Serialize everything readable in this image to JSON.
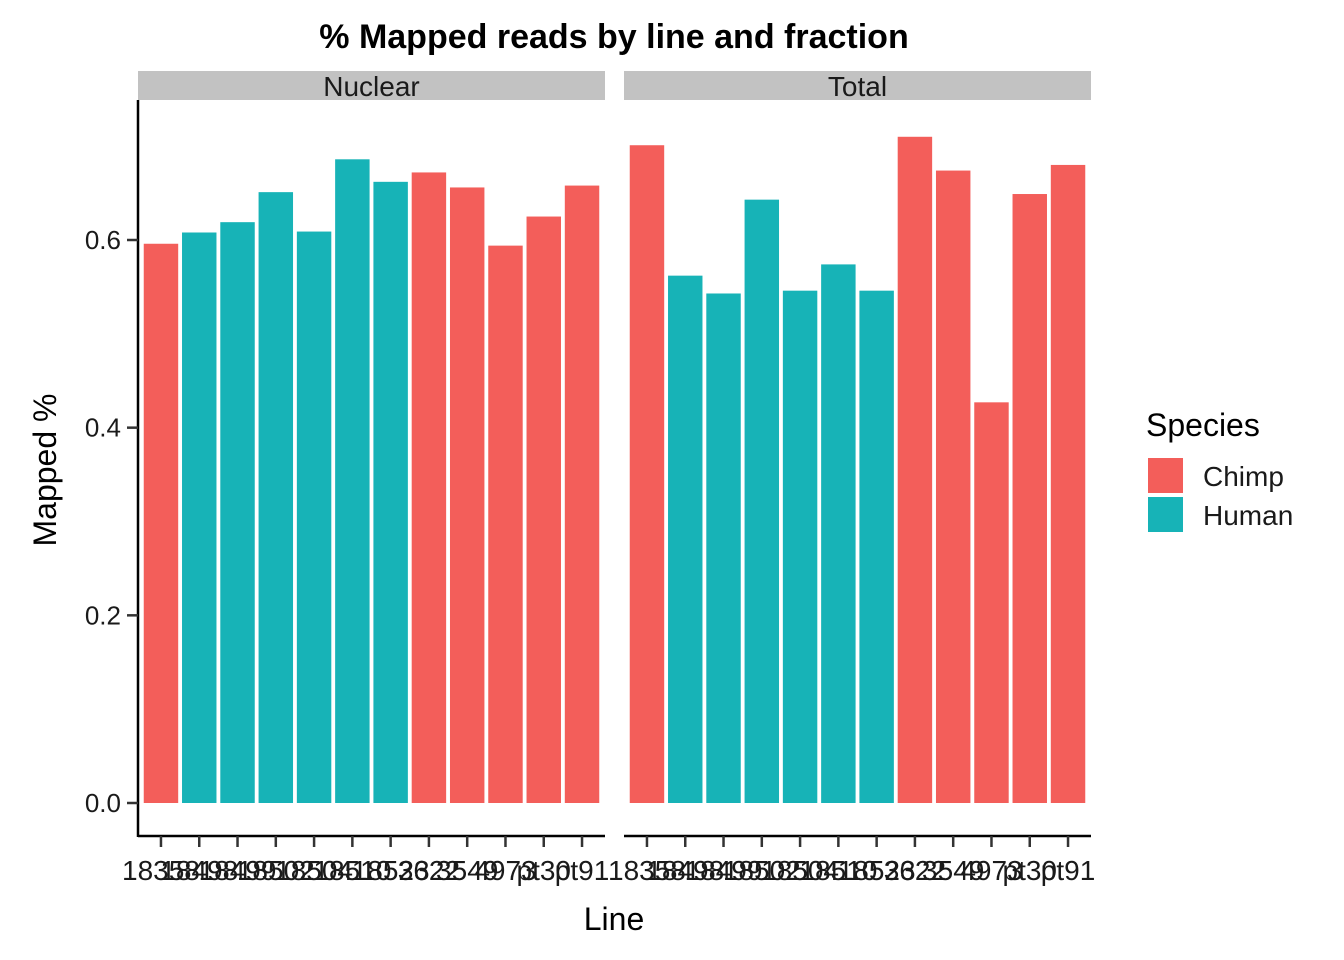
{
  "chart_data": {
    "type": "bar",
    "title": "% Mapped reads by line and fraction",
    "xlabel": "Line",
    "ylabel": "Mapped %",
    "ylim": [
      0,
      0.755
    ],
    "yticks": [
      "0.0",
      "0.2",
      "0.4",
      "0.6"
    ],
    "ytick_values": [
      0,
      0.2,
      0.4,
      0.6
    ],
    "grid": false,
    "legend": {
      "title": "Species",
      "position": "right",
      "entries": [
        {
          "name": "Chimp",
          "color": "#F35E5A"
        },
        {
          "name": "Human",
          "color": "#17B3B7"
        }
      ]
    },
    "categories": [
      "18358",
      "18498",
      "18499",
      "18502",
      "18504",
      "18510",
      "18523",
      "3622",
      "4973",
      "pt30",
      "pt91",
      "3549"
    ],
    "x_tick_labels": [
      "18358",
      "18498",
      "18499",
      "18502",
      "18504",
      "18510",
      "18523",
      "3622",
      "3549",
      "4973",
      "pt30",
      "pt91"
    ],
    "panels": [
      {
        "name": "Nuclear",
        "bars": [
          {
            "line": "18358",
            "species": "Chimp",
            "value": 0.596
          },
          {
            "line": "18498",
            "species": "Human",
            "value": 0.608
          },
          {
            "line": "18499",
            "species": "Human",
            "value": 0.619
          },
          {
            "line": "18502",
            "species": "Human",
            "value": 0.651
          },
          {
            "line": "18504",
            "species": "Human",
            "value": 0.609
          },
          {
            "line": "18510",
            "species": "Human",
            "value": 0.686
          },
          {
            "line": "18523",
            "species": "Human",
            "value": 0.662
          },
          {
            "line": "3622",
            "species": "Chimp",
            "value": 0.672
          },
          {
            "line": "3549",
            "species": "Chimp",
            "value": 0.656
          },
          {
            "line": "4973",
            "species": "Chimp",
            "value": 0.594
          },
          {
            "line": "pt30",
            "species": "Chimp",
            "value": 0.625
          },
          {
            "line": "pt91",
            "species": "Chimp",
            "value": 0.658
          }
        ]
      },
      {
        "name": "Total",
        "bars": [
          {
            "line": "18358",
            "species": "Chimp",
            "value": 0.701
          },
          {
            "line": "18498",
            "species": "Human",
            "value": 0.562
          },
          {
            "line": "18499",
            "species": "Human",
            "value": 0.543
          },
          {
            "line": "18502",
            "species": "Human",
            "value": 0.643
          },
          {
            "line": "18504",
            "species": "Human",
            "value": 0.546
          },
          {
            "line": "18510",
            "species": "Human",
            "value": 0.574
          },
          {
            "line": "18523",
            "species": "Human",
            "value": 0.546
          },
          {
            "line": "3622",
            "species": "Chimp",
            "value": 0.71
          },
          {
            "line": "3549",
            "species": "Chimp",
            "value": 0.674
          },
          {
            "line": "4973",
            "species": "Chimp",
            "value": 0.427
          },
          {
            "line": "pt30",
            "species": "Chimp",
            "value": 0.649
          },
          {
            "line": "pt91",
            "species": "Chimp",
            "value": 0.68
          }
        ]
      }
    ]
  }
}
